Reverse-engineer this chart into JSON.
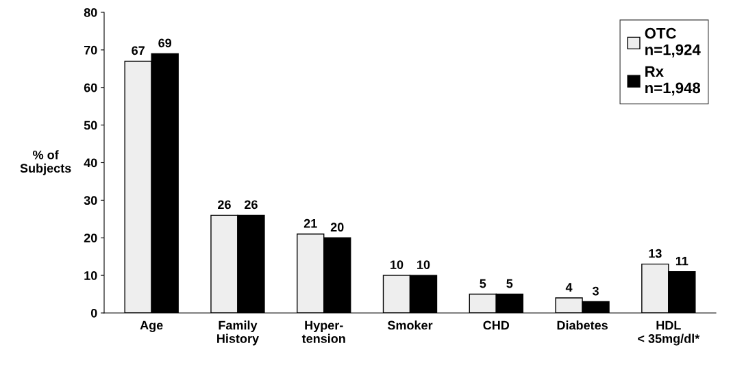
{
  "chart_data": {
    "type": "bar",
    "ylabel": "% of\nSubjects",
    "categories": [
      "Age",
      "Family\nHistory",
      "Hyper-\ntension",
      "Smoker",
      "CHD",
      "Diabetes",
      "HDL\n< 35mg/dl*"
    ],
    "series": [
      {
        "name": "OTC\nn=1,924",
        "color": "#eeeeee",
        "values": [
          67,
          26,
          21,
          10,
          5,
          4,
          13
        ]
      },
      {
        "name": "Rx\nn=1,948",
        "color": "#000000",
        "values": [
          69,
          26,
          20,
          10,
          5,
          3,
          11
        ]
      }
    ],
    "ylim": [
      0,
      80
    ],
    "yticks": [
      0,
      10,
      20,
      30,
      40,
      50,
      60,
      70,
      80
    ],
    "data_labels": true,
    "grid": false,
    "legend": "top right"
  }
}
